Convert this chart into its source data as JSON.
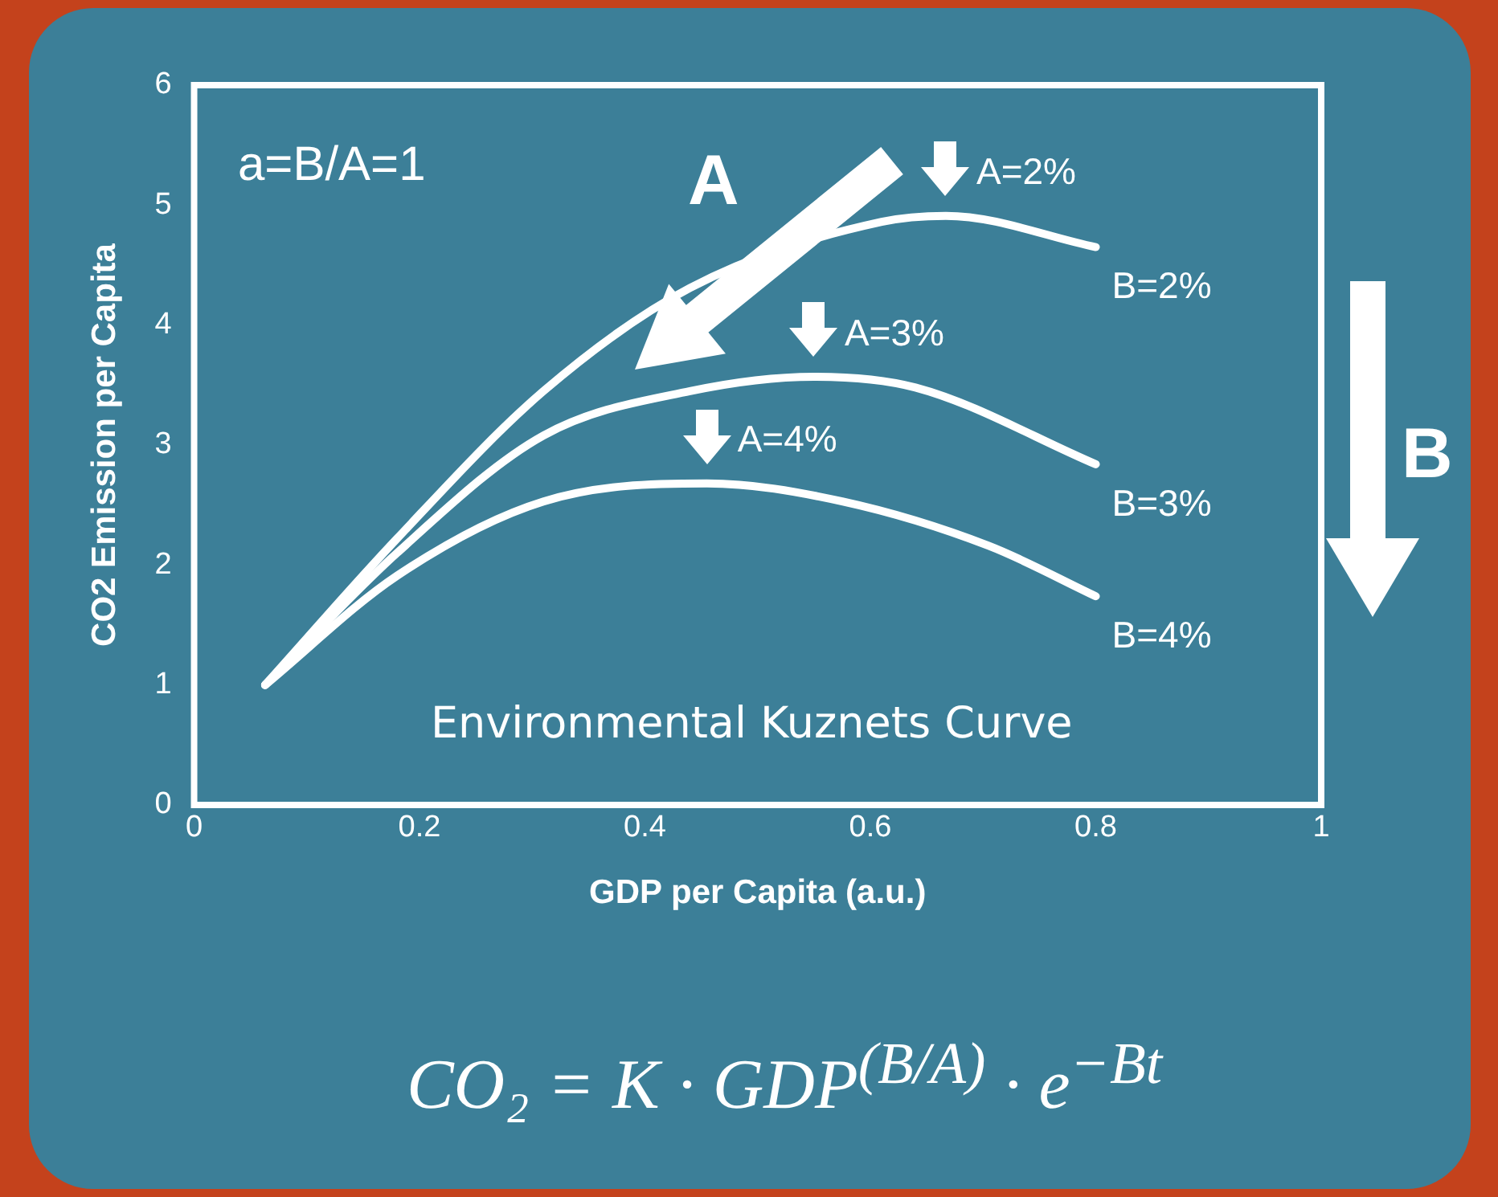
{
  "chart_data": {
    "type": "line",
    "xlabel": "GDP per Capita (a.u.)",
    "ylabel": "CO2 Emission per Capita",
    "xlim": [
      0,
      1
    ],
    "xticks": [
      0,
      0.2,
      0.4,
      0.6,
      0.8,
      1
    ],
    "ylim": [
      0,
      6
    ],
    "yticks": [
      0,
      1,
      2,
      3,
      4,
      5,
      6
    ],
    "grid": false,
    "legend": false,
    "marker": "none",
    "line_style": "solid",
    "series": [
      {
        "name": "B=2%",
        "color": "#ffffff",
        "x": [
          0.063,
          0.18,
          0.31,
          0.44,
          0.61,
          0.667,
          0.8
        ],
        "values": [
          1,
          2.22,
          3.45,
          4.31,
          4.86,
          4.91,
          4.65
        ]
      },
      {
        "name": "B=3%",
        "color": "#ffffff",
        "x": [
          0.063,
          0.18,
          0.31,
          0.44,
          0.55,
          0.64,
          0.8
        ],
        "values": [
          1,
          2.1,
          3.08,
          3.45,
          3.57,
          3.48,
          2.84
        ]
      },
      {
        "name": "B=4%",
        "color": "#ffffff",
        "x": [
          0.063,
          0.18,
          0.31,
          0.455,
          0.575,
          0.705,
          0.8
        ],
        "values": [
          1,
          1.91,
          2.53,
          2.68,
          2.53,
          2.16,
          1.74
        ]
      }
    ],
    "annotations": [
      "a=B/A=1",
      "A",
      "B",
      {
        "text": "A=2%",
        "x": 0.667,
        "y": 4.91
      },
      {
        "text": "A=3%",
        "x": 0.55,
        "y": 3.57
      },
      {
        "text": "A=4%",
        "x": 0.455,
        "y": 2.68
      },
      "Environmental Kuznets Curve",
      "CO₂ = K · GDP$^{(B/A)}$ · e$^{−Bt}$"
    ]
  }
}
